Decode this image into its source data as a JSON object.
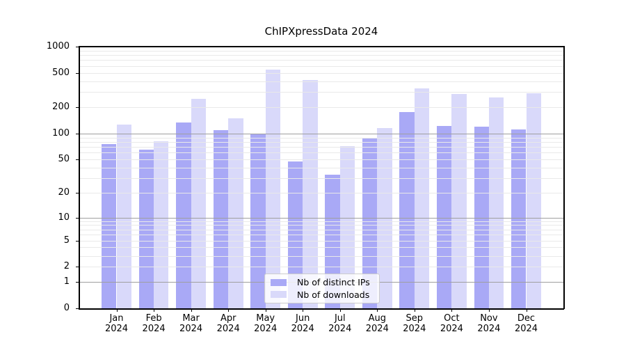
{
  "title": "ChIPXpressData 2024",
  "chart_data": {
    "type": "bar",
    "title": "ChIPXpressData 2024",
    "categories": [
      "Jan",
      "Feb",
      "Mar",
      "Apr",
      "May",
      "Jun",
      "Jul",
      "Aug",
      "Sep",
      "Oct",
      "Nov",
      "Dec"
    ],
    "category_year": "2024",
    "series": [
      {
        "name": "Nb of distinct IPs",
        "color": "#a9a9f6",
        "values": [
          75,
          65,
          134,
          109,
          100,
          47,
          33,
          88,
          178,
          123,
          120,
          111
        ]
      },
      {
        "name": "Nb of downloads",
        "color": "#d9d9fa",
        "values": [
          127,
          81,
          250,
          150,
          545,
          412,
          72,
          116,
          330,
          286,
          260,
          289
        ]
      }
    ],
    "yscale": "log1p",
    "ylim": [
      0,
      1000
    ],
    "yticks": [
      0,
      1,
      2,
      5,
      10,
      20,
      50,
      100,
      200,
      500,
      1000
    ],
    "grid": "both",
    "legend_position": "lower-center"
  },
  "colors": {
    "background": "#ffffff",
    "bar_ips": "#a9a9f6",
    "bar_downloads": "#d9d9fa",
    "grid_major": "#9f9f9f",
    "grid_minor": "#e9e9e9",
    "axis": "#000000",
    "text": "#000000",
    "legend_border": "#cccccc"
  }
}
